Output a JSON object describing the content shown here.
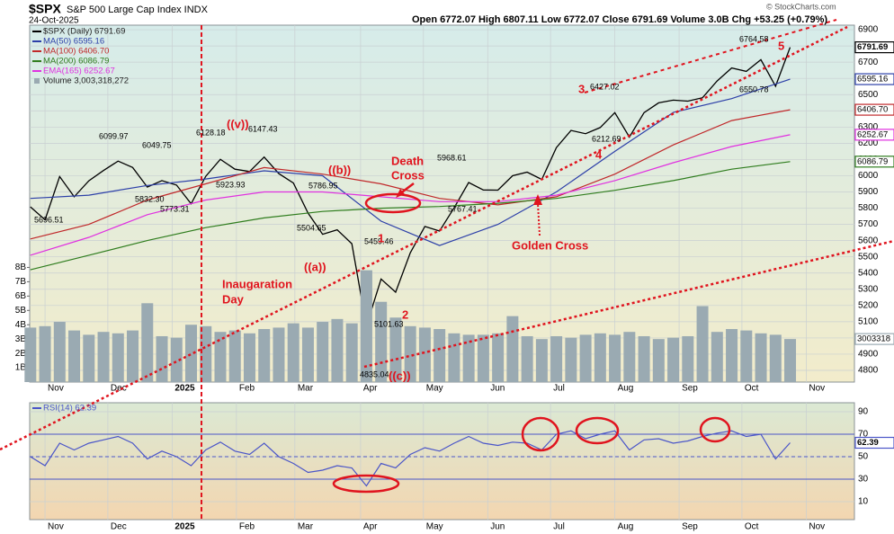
{
  "chart_data": [
    {
      "type": "line",
      "title": "$SPX",
      "subtitle": "S&P 500 Large Cap Index INDX",
      "date": "24-Oct-2025",
      "quote": "Open 6772.07  High 6807.11  Low 6772.07  Close 6791.69  Volume 3.0B  Chg +53.25 (+0.79%)",
      "credit": "© StockCharts.com",
      "x": [
        -1,
        0,
        1,
        2,
        3,
        4,
        5,
        6,
        7,
        8,
        9,
        10,
        11,
        12,
        13,
        14,
        15,
        16,
        17,
        18,
        19,
        20,
        21,
        22,
        23,
        24,
        25,
        26,
        27,
        28,
        29,
        30,
        31,
        32,
        33,
        34,
        35,
        36,
        37,
        38,
        39,
        40,
        41,
        42,
        43,
        44,
        45,
        46,
        47,
        48,
        49,
        50,
        51
      ],
      "xlim": [
        -1.05,
        55.4
      ],
      "xticks": [
        {
          "value": 0,
          "label": "Nov"
        },
        {
          "value": 4.3,
          "label": "Dec"
        },
        {
          "value": 8.7,
          "label": "2025"
        },
        {
          "value": 13.1,
          "label": "Feb"
        },
        {
          "value": 17.1,
          "label": "Mar"
        },
        {
          "value": 21.6,
          "label": "Apr"
        },
        {
          "value": 25.9,
          "label": "May"
        },
        {
          "value": 30.3,
          "label": "Jun"
        },
        {
          "value": 34.6,
          "label": "Jul"
        },
        {
          "value": 39.0,
          "label": "Aug"
        },
        {
          "value": 43.4,
          "label": "Sep"
        },
        {
          "value": 47.7,
          "label": "Oct"
        },
        {
          "value": 52.1,
          "label": "Nov"
        }
      ],
      "ylim": [
        4728,
        6928
      ],
      "yticks": [
        4800,
        4900,
        5000,
        5100,
        5200,
        5300,
        5400,
        5500,
        5600,
        5700,
        5800,
        5900,
        6000,
        6100,
        6200,
        6300,
        6400,
        6500,
        6600,
        6700,
        6800,
        6900
      ],
      "y2lim": [
        0,
        24.9
      ],
      "y2ticks": [
        {
          "value": 1,
          "label": "1B"
        },
        {
          "value": 2,
          "label": "2B"
        },
        {
          "value": 3,
          "label": "3B"
        },
        {
          "value": 4,
          "label": "4B"
        },
        {
          "value": 5,
          "label": "5B"
        },
        {
          "value": 6,
          "label": "6B"
        },
        {
          "value": 7,
          "label": "7B"
        },
        {
          "value": 8,
          "label": "8B"
        }
      ],
      "grid": true,
      "series": [
        {
          "name": "$SPX (Daily) 6791.69",
          "color": "#000000",
          "last_label": "6791.69",
          "values": [
            5808,
            5728,
            5995,
            5870,
            5969,
            6032,
            6090,
            6051,
            5930,
            5970,
            5942,
            5827,
            5996,
            6101,
            6040,
            6026,
            6115,
            6013,
            5955,
            5770,
            5639,
            5667,
            5581,
            5074,
            5363,
            5282,
            5525,
            5687,
            5659,
            5802,
            5958,
            5912,
            5911,
            6000,
            6022,
            5977,
            6173,
            6279,
            6259,
            6297,
            6389,
            6238,
            6389,
            6449,
            6466,
            6460,
            6481,
            6584,
            6664,
            6643,
            6715,
            6552,
            6791.69
          ]
        },
        {
          "name": "MA(50) 6595.16",
          "color": "#2c3fa8",
          "last_label": "6595.16",
          "x": [
            -1,
            3,
            7,
            11,
            15,
            19,
            23,
            27,
            31,
            35,
            39,
            43,
            47,
            51
          ],
          "values": [
            5860,
            5880,
            5940,
            5980,
            6030,
            6000,
            5720,
            5570,
            5700,
            5900,
            6150,
            6390,
            6475,
            6595.16
          ]
        },
        {
          "name": "MA(100) 6406.70",
          "color": "#c0282a",
          "last_label": "6406.70",
          "x": [
            -1,
            3,
            7,
            11,
            15,
            19,
            23,
            27,
            31,
            35,
            39,
            43,
            47,
            51
          ],
          "values": [
            5610,
            5700,
            5850,
            5950,
            6050,
            6010,
            5950,
            5860,
            5820,
            5870,
            6010,
            6190,
            6340,
            6406.7
          ]
        },
        {
          "name": "MA(200) 6086.79",
          "color": "#2f7d1e",
          "last_label": "6086.79",
          "x": [
            -1,
            3,
            7,
            11,
            15,
            19,
            23,
            27,
            31,
            35,
            39,
            43,
            47,
            51
          ],
          "values": [
            5420,
            5510,
            5600,
            5680,
            5740,
            5780,
            5800,
            5810,
            5830,
            5860,
            5910,
            5970,
            6040,
            6086.79
          ]
        },
        {
          "name": "EMA(165) 6252.67",
          "color": "#e030e0",
          "last_label": "6252.67",
          "x": [
            -1,
            3,
            7,
            11,
            15,
            19,
            23,
            27,
            31,
            35,
            39,
            43,
            47,
            51
          ],
          "values": [
            5510,
            5620,
            5760,
            5850,
            5900,
            5900,
            5870,
            5840,
            5840,
            5880,
            5970,
            6080,
            6180,
            6252.67
          ]
        },
        {
          "name": "Volume 3,003,318,272",
          "color": "#9aaab2",
          "axis": "y2",
          "mark": "bar",
          "last_label": "3003318",
          "values": [
            3.8,
            3.9,
            4.2,
            3.6,
            3.3,
            3.5,
            3.4,
            3.6,
            5.5,
            3.2,
            3.1,
            4.0,
            3.9,
            3.5,
            3.6,
            3.4,
            3.7,
            3.8,
            4.1,
            3.8,
            4.2,
            4.4,
            4.1,
            7.8,
            5.6,
            4.5,
            3.9,
            3.8,
            3.7,
            3.4,
            3.3,
            3.3,
            3.4,
            4.6,
            3.2,
            3.0,
            3.2,
            3.1,
            3.3,
            3.4,
            3.3,
            3.5,
            3.2,
            3.0,
            3.1,
            3.2,
            5.3,
            3.5,
            3.7,
            3.6,
            3.4,
            3.3,
            3.003318272
          ]
        }
      ],
      "annotations": [
        "6099.97",
        "6049.75",
        "5832.30",
        "5696.51",
        "5773.31",
        "6128.18",
        "5923.93",
        "((v))",
        "6147.43",
        "5786.95",
        "((b))",
        "5504.65",
        "((a))",
        "Death",
        "Cross",
        "5968.61",
        "5767.41",
        "5459.46",
        "1",
        "2",
        "5101.63",
        "4835.04",
        "((c))",
        "Inaugaration",
        "Day",
        "3",
        "6427.02",
        "6212.69",
        "4",
        "6764.58",
        "5",
        "6550.78",
        "Golden Cross"
      ]
    },
    {
      "type": "line",
      "x": [
        -1,
        0,
        1,
        2,
        3,
        4,
        5,
        6,
        7,
        8,
        9,
        10,
        11,
        12,
        13,
        14,
        15,
        16,
        17,
        18,
        19,
        20,
        21,
        22,
        23,
        24,
        25,
        26,
        27,
        28,
        29,
        30,
        31,
        32,
        33,
        34,
        35,
        36,
        37,
        38,
        39,
        40,
        41,
        42,
        43,
        44,
        45,
        46,
        47,
        48,
        49,
        50,
        51
      ],
      "xlim": [
        -1.05,
        55.4
      ],
      "xticks": [
        {
          "value": 0,
          "label": "Nov"
        },
        {
          "value": 4.3,
          "label": "Dec"
        },
        {
          "value": 8.7,
          "label": "2025"
        },
        {
          "value": 13.1,
          "label": "Feb"
        },
        {
          "value": 17.1,
          "label": "Mar"
        },
        {
          "value": 21.6,
          "label": "Apr"
        },
        {
          "value": 25.9,
          "label": "May"
        },
        {
          "value": 30.3,
          "label": "Jun"
        },
        {
          "value": 34.6,
          "label": "Jul"
        },
        {
          "value": 39.0,
          "label": "Aug"
        },
        {
          "value": 43.4,
          "label": "Sep"
        },
        {
          "value": 47.7,
          "label": "Oct"
        },
        {
          "value": 52.1,
          "label": "Nov"
        }
      ],
      "ylim": [
        -6,
        98
      ],
      "yticks": [
        10,
        30,
        50,
        70,
        90
      ],
      "reference_lines": [
        70,
        50,
        30
      ],
      "grid": true,
      "series": [
        {
          "name": "RSI(14) 62.39",
          "color": "#4a55c8",
          "last_label": "62.39",
          "values": [
            50,
            42,
            62,
            56,
            62,
            65,
            68,
            62,
            48,
            55,
            50,
            42,
            56,
            63,
            55,
            52,
            62,
            50,
            44,
            36,
            38,
            42,
            40,
            24,
            44,
            40,
            52,
            58,
            55,
            62,
            68,
            62,
            60,
            63,
            62,
            56,
            70,
            73,
            66,
            70,
            73,
            56,
            65,
            66,
            62,
            64,
            68,
            71,
            73,
            68,
            70,
            48,
            62.39
          ]
        }
      ]
    }
  ]
}
